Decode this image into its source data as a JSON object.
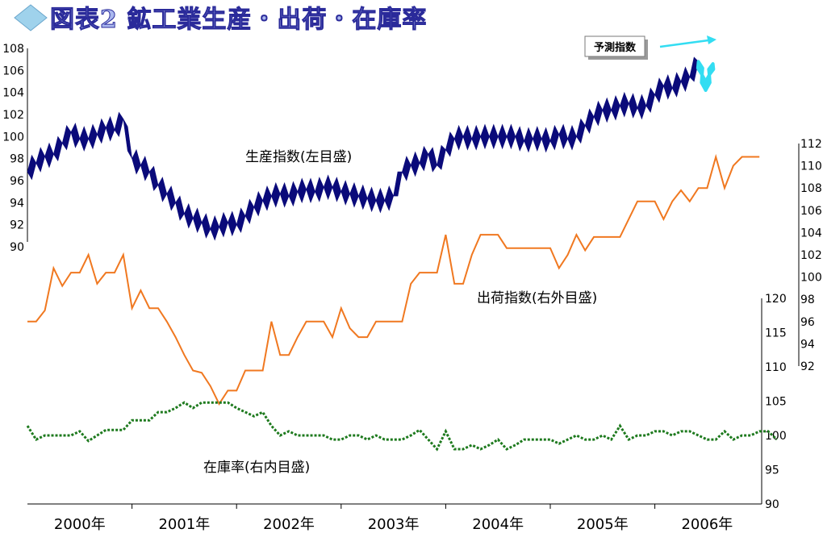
{
  "chart_data": {
    "type": "line",
    "title": "図表2 鉱工業生産・出荷・在庫率",
    "years": [
      "2000年",
      "2001年",
      "2002年",
      "2003年",
      "2004年",
      "2005年",
      "2006年"
    ],
    "axes": {
      "left": {
        "ylim": [
          90,
          108
        ],
        "ticks": [
          90,
          92,
          94,
          96,
          98,
          100,
          102,
          104,
          106,
          108
        ]
      },
      "right_outer": {
        "ylim": [
          92,
          112
        ],
        "ticks": [
          92,
          94,
          96,
          98,
          100,
          102,
          104,
          106,
          108,
          110,
          112
        ]
      },
      "right_inner": {
        "ylim": [
          90,
          120
        ],
        "ticks": [
          90,
          95,
          100,
          105,
          110,
          115,
          120
        ]
      }
    },
    "series": [
      {
        "key": "production",
        "name": "生産指数(左目盛)",
        "axis": "left",
        "color": "#0a0a7a",
        "values": [
          96.8,
          97.6,
          98.2,
          98.4,
          99.4,
          100.4,
          99.8,
          99.8,
          100.2,
          100.8,
          100.6,
          101.6,
          98.0,
          97.4,
          96.8,
          95.6,
          94.8,
          94.0,
          93.0,
          92.6,
          92.2,
          91.6,
          91.8,
          92.2,
          92.0,
          92.8,
          93.6,
          94.2,
          94.6,
          94.8,
          94.6,
          95.0,
          95.2,
          95.0,
          95.4,
          95.4,
          95.0,
          94.8,
          94.6,
          94.4,
          94.2,
          94.2,
          94.6,
          96.8,
          97.4,
          97.6,
          98.4,
          97.4,
          98.8,
          99.8,
          100.0,
          99.8,
          100.0,
          100.0,
          100.0,
          100.0,
          100.0,
          99.6,
          99.8,
          99.8,
          99.6,
          100.2,
          99.8,
          100.0,
          101.0,
          101.8,
          102.4,
          102.4,
          102.8,
          103.0,
          102.6,
          102.8,
          103.8,
          104.6,
          104.4,
          105.0,
          105.4,
          106.8
        ]
      },
      {
        "key": "production_forecast",
        "name": "予測指数",
        "axis": "left",
        "color": "#33ddf2",
        "values": [
          106.8,
          105.6,
          104.2,
          105.6,
          106.6
        ]
      },
      {
        "key": "shipments",
        "name": "出荷指数(右外目盛)",
        "axis": "right_outer",
        "color": "#f07820",
        "values": [
          96.0,
          96.0,
          97.0,
          100.8,
          99.2,
          100.4,
          100.4,
          102.0,
          99.4,
          100.4,
          100.4,
          102.0,
          97.2,
          98.8,
          97.2,
          97.2,
          96.0,
          94.6,
          93.0,
          91.6,
          91.4,
          90.2,
          88.6,
          89.8,
          89.8,
          91.6,
          91.6,
          91.6,
          96.0,
          93.0,
          93.0,
          94.6,
          96.0,
          96.0,
          96.0,
          94.6,
          97.2,
          95.4,
          94.6,
          94.6,
          96.0,
          96.0,
          96.0,
          96.0,
          99.4,
          100.4,
          100.4,
          100.4,
          103.8,
          99.4,
          99.4,
          102.0,
          103.8,
          103.8,
          103.8,
          102.6,
          102.6,
          102.6,
          102.6,
          102.6,
          102.6,
          100.8,
          102.0,
          103.8,
          102.4,
          103.6,
          103.6,
          103.6,
          103.6,
          105.2,
          106.8,
          106.8,
          106.8,
          105.2,
          106.8,
          107.8,
          106.8,
          108.0,
          108.0,
          110.8,
          108.0,
          110.0,
          110.8,
          110.8,
          110.8
        ]
      },
      {
        "key": "inventory",
        "name": "在庫率(右内目盛)",
        "axis": "right_inner",
        "color": "#1e7a1e",
        "values": [
          101.4,
          99.4,
          100.0,
          100.0,
          100.0,
          100.0,
          100.6,
          99.2,
          100.0,
          100.8,
          100.8,
          100.8,
          102.2,
          102.2,
          102.2,
          103.4,
          103.4,
          104.0,
          104.8,
          104.0,
          104.8,
          104.8,
          104.8,
          104.8,
          104.0,
          103.4,
          102.8,
          103.4,
          101.4,
          100.0,
          100.6,
          100.0,
          100.0,
          100.0,
          100.0,
          99.4,
          99.4,
          100.0,
          100.0,
          99.4,
          100.0,
          99.4,
          99.4,
          99.4,
          100.0,
          100.8,
          99.4,
          98.0,
          100.6,
          98.0,
          98.0,
          98.6,
          98.0,
          98.6,
          99.4,
          98.0,
          98.6,
          99.4,
          99.4,
          99.4,
          99.4,
          98.8,
          99.4,
          100.0,
          99.4,
          99.4,
          100.0,
          99.4,
          101.4,
          99.4,
          100.0,
          100.0,
          100.6,
          100.6,
          100.0,
          100.6,
          100.6,
          100.0,
          99.4,
          99.4,
          100.6,
          99.4,
          100.0,
          100.0,
          100.6,
          100.6,
          99.4
        ]
      }
    ],
    "annotations": {
      "production": "生産指数(左目盛)",
      "shipments": "出荷指数(右外目盛)",
      "inventory": "在庫率(右内目盛)",
      "forecast": "予測指数"
    }
  }
}
